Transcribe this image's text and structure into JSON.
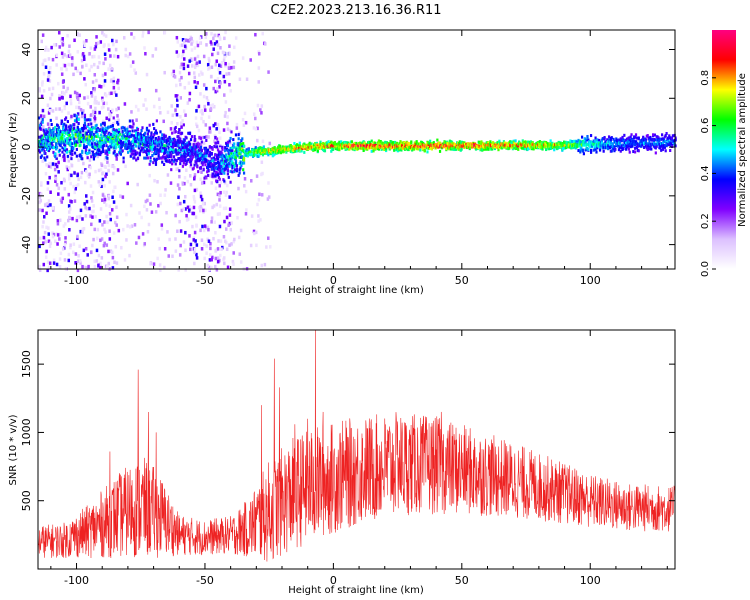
{
  "page_title": "C2E2.2023.213.16.36.R11",
  "chart_data": [
    {
      "type": "heatmap",
      "title": "C2E2.2023.213.16.36.R11",
      "xlabel": "Height of straight line (km)",
      "ylabel": "Frequency (Hz)",
      "xlim": [
        -115,
        133
      ],
      "ylim": [
        -50,
        48
      ],
      "x_ticks": [
        -100,
        -50,
        0,
        50,
        100
      ],
      "x_tick_labels": [
        "-100",
        "-50",
        "0",
        "50",
        "100"
      ],
      "y_ticks": [
        -40,
        -20,
        0,
        20,
        40
      ],
      "y_tick_labels": [
        "-40",
        "-20",
        "0",
        "20",
        "40"
      ],
      "grid": false,
      "colorbar": {
        "label": "Normalized spectral amplitude",
        "range": [
          0,
          1
        ],
        "ticks": [
          0.0,
          0.2,
          0.4,
          0.6,
          0.8
        ],
        "tick_labels": [
          "0.0",
          "0.2",
          "0.4",
          "0.6",
          "0.8"
        ],
        "colors": [
          "#ffffff",
          "#dcc0ff",
          "#8000ff",
          "#0000ff",
          "#00ffff",
          "#00ff00",
          "#ffff00",
          "#ff0000",
          "#ff0080"
        ]
      },
      "ridge": [
        {
          "x": -115,
          "y": 3,
          "amp": 0.45
        },
        {
          "x": -100,
          "y": 4,
          "amp": 0.5
        },
        {
          "x": -85,
          "y": 3,
          "amp": 0.45
        },
        {
          "x": -70,
          "y": 1,
          "amp": 0.4
        },
        {
          "x": -55,
          "y": -2,
          "amp": 0.35
        },
        {
          "x": -45,
          "y": -7,
          "amp": 0.35
        },
        {
          "x": -38,
          "y": -3,
          "amp": 0.5
        },
        {
          "x": -30,
          "y": -2,
          "amp": 0.75
        },
        {
          "x": -20,
          "y": -1,
          "amp": 0.8
        },
        {
          "x": -10,
          "y": 0,
          "amp": 0.85
        },
        {
          "x": 0,
          "y": 0.5,
          "amp": 0.85
        },
        {
          "x": 10,
          "y": 0.5,
          "amp": 0.9
        },
        {
          "x": 40,
          "y": 0.5,
          "amp": 0.9
        },
        {
          "x": 70,
          "y": 0.7,
          "amp": 0.85
        },
        {
          "x": 90,
          "y": 0.8,
          "amp": 0.75
        },
        {
          "x": 100,
          "y": 1,
          "amp": 0.55
        },
        {
          "x": 115,
          "y": 1.5,
          "amp": 0.45
        },
        {
          "x": 133,
          "y": 2,
          "amp": 0.45
        }
      ],
      "scatter_bands": [
        {
          "x_from": -115,
          "x_to": -84,
          "density": 0.9
        },
        {
          "x_from": -62,
          "x_to": -40,
          "density": 0.9
        },
        {
          "x_from": -84,
          "x_to": -62,
          "density": 0.25
        },
        {
          "x_from": -40,
          "x_to": -25,
          "density": 0.25
        }
      ]
    },
    {
      "type": "line",
      "xlabel": "Height of straight line (km)",
      "ylabel": "SNR (10 * v/v)",
      "xlim": [
        -115,
        133
      ],
      "ylim": [
        0,
        1750
      ],
      "x_ticks": [
        -100,
        -50,
        0,
        50,
        100
      ],
      "x_tick_labels": [
        "-100",
        "-50",
        "0",
        "50",
        "100"
      ],
      "y_ticks": [
        500,
        1000,
        1500
      ],
      "y_tick_labels": [
        "500",
        "1000",
        "1500"
      ],
      "grid": false,
      "line_color": "#ee2222",
      "envelope": [
        {
          "x": -115,
          "mean": 200,
          "amp": 120
        },
        {
          "x": -105,
          "mean": 210,
          "amp": 130
        },
        {
          "x": -95,
          "mean": 280,
          "amp": 200
        },
        {
          "x": -85,
          "mean": 380,
          "amp": 300
        },
        {
          "x": -75,
          "mean": 460,
          "amp": 380
        },
        {
          "x": -68,
          "mean": 400,
          "amp": 320
        },
        {
          "x": -60,
          "mean": 250,
          "amp": 150
        },
        {
          "x": -50,
          "mean": 230,
          "amp": 130
        },
        {
          "x": -40,
          "mean": 250,
          "amp": 140
        },
        {
          "x": -33,
          "mean": 300,
          "amp": 220
        },
        {
          "x": -25,
          "mean": 420,
          "amp": 380
        },
        {
          "x": -15,
          "mean": 560,
          "amp": 420
        },
        {
          "x": -5,
          "mean": 640,
          "amp": 420
        },
        {
          "x": 10,
          "mean": 720,
          "amp": 400
        },
        {
          "x": 25,
          "mean": 770,
          "amp": 380
        },
        {
          "x": 40,
          "mean": 760,
          "amp": 360
        },
        {
          "x": 55,
          "mean": 710,
          "amp": 320
        },
        {
          "x": 70,
          "mean": 650,
          "amp": 280
        },
        {
          "x": 85,
          "mean": 580,
          "amp": 240
        },
        {
          "x": 100,
          "mean": 500,
          "amp": 200
        },
        {
          "x": 115,
          "mean": 450,
          "amp": 180
        },
        {
          "x": 133,
          "mean": 440,
          "amp": 170
        }
      ],
      "spikes": [
        {
          "x": -87,
          "y": 860
        },
        {
          "x": -76,
          "y": 1460
        },
        {
          "x": -72,
          "y": 1150
        },
        {
          "x": -69,
          "y": 1000
        },
        {
          "x": -28,
          "y": 1200
        },
        {
          "x": -23,
          "y": 1540
        },
        {
          "x": -21,
          "y": 1330
        },
        {
          "x": -15,
          "y": 1060
        },
        {
          "x": -10,
          "y": 1100
        },
        {
          "x": -7,
          "y": 1750
        },
        {
          "x": -4,
          "y": 1150
        },
        {
          "x": 7,
          "y": 1030
        },
        {
          "x": 25,
          "y": 1080
        },
        {
          "x": 42,
          "y": 1150
        }
      ]
    }
  ]
}
